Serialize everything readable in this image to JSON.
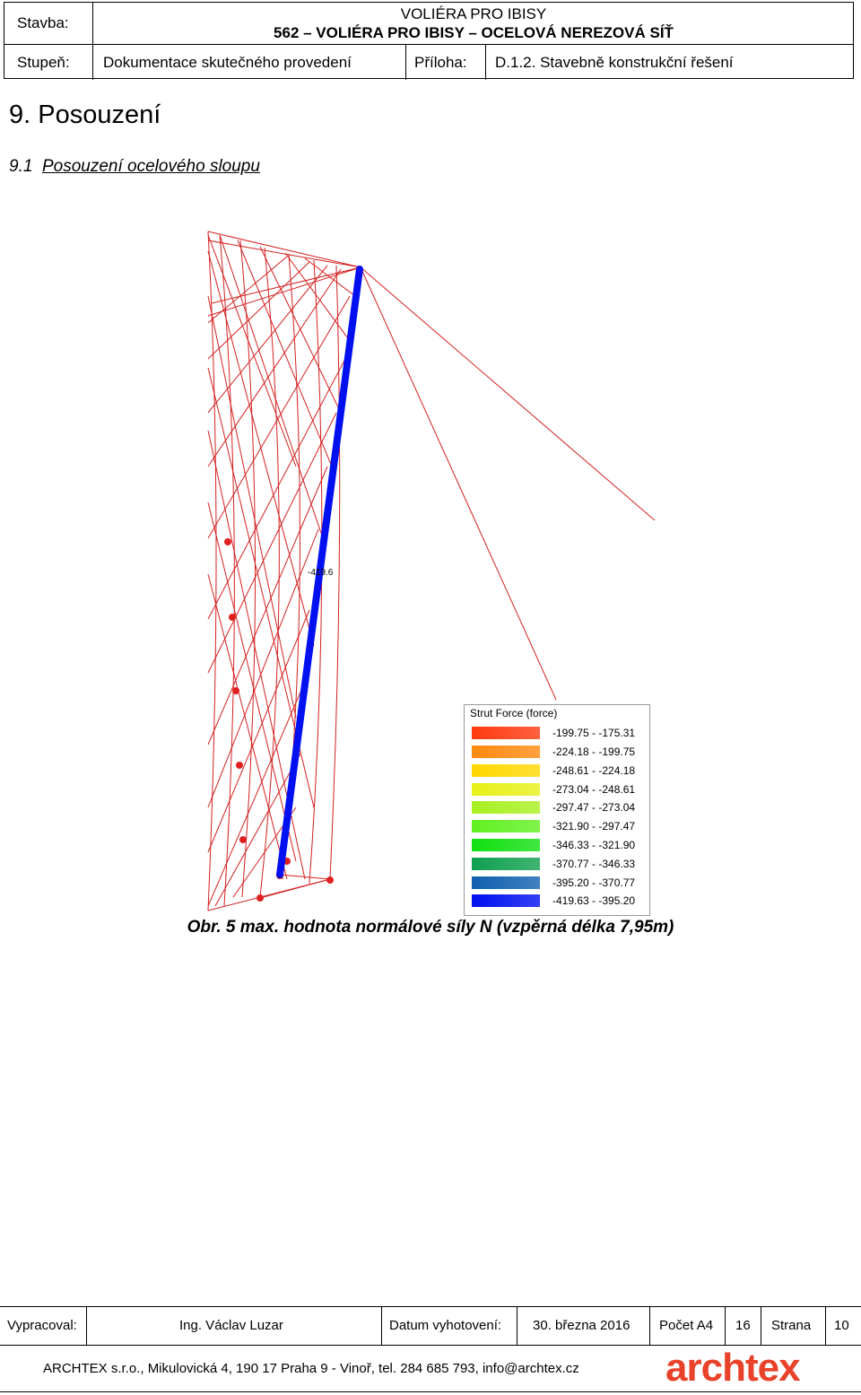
{
  "header": {
    "stavba_label": "Stavba:",
    "project_line1": "VOLIÉRA PRO IBISY",
    "project_line2": "562 – VOLIÉRA PRO IBISY – OCELOVÁ NEREZOVÁ SÍŤ",
    "stupen_label": "Stupeň:",
    "stupen_value": "Dokumentace skutečného provedení",
    "priloha_label": "Příloha:",
    "priloha_value": "D.1.2. Stavebně konstrukční řešení"
  },
  "section": {
    "heading": "9.  Posouzení",
    "sub_number": "9.1",
    "sub_title": "Posouzení ocelového sloupu"
  },
  "figure": {
    "member_label": "-419.6",
    "caption": "Obr. 5 max. hodnota normálové síly N (vzpěrná délka 7,95m)",
    "legend": {
      "title": "Strut Force (force)",
      "items": [
        {
          "label": "-199.75 - -175.31",
          "color": "#ff3a10"
        },
        {
          "label": "-224.18 - -199.75",
          "color": "#ff8a10"
        },
        {
          "label": "-248.61 - -224.18",
          "color": "#ffd800"
        },
        {
          "label": "-273.04 - -248.61",
          "color": "#e8f018"
        },
        {
          "label": "-297.47 - -273.04",
          "color": "#a8f020"
        },
        {
          "label": "-321.90 - -297.47",
          "color": "#60f020"
        },
        {
          "label": "-346.33 - -321.90",
          "color": "#10e010"
        },
        {
          "label": "-370.77 - -346.33",
          "color": "#10a050"
        },
        {
          "label": "-395.20 - -370.77",
          "color": "#1060b0"
        },
        {
          "label": "-419.63 - -395.20",
          "color": "#0010f0"
        }
      ]
    }
  },
  "footer": {
    "vypracoval_label": "Vypracoval:",
    "vypracoval_value": "Ing. Václav Luzar",
    "datum_label": "Datum vyhotovení:",
    "datum_value": "30. března 2016",
    "pocet_label": "Počet A4",
    "pocet_value": "16",
    "strana_label": "Strana",
    "strana_value": "10",
    "address": "ARCHTEX s.r.o., Mikulovická 4, 190 17 Praha 9 - Vinoř, tel. 284 685 793,  info@archtex.cz",
    "logo_text": "archtex",
    "logo_color": "#e8422a"
  }
}
